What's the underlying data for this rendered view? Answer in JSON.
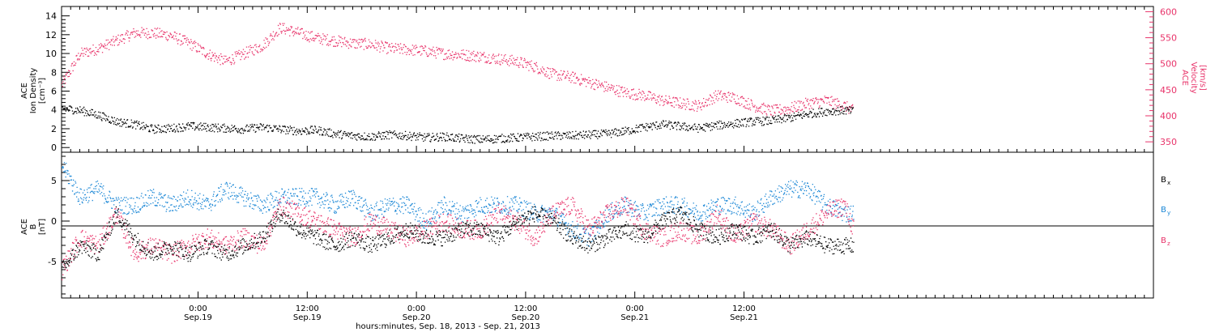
{
  "chart_data": [
    {
      "type": "scatter",
      "panel": "top",
      "ylabel_left": [
        "ACE",
        "Ion Density",
        "[cm⁻³]"
      ],
      "ylabel_right": [
        "ACE",
        "Velocity",
        "[km/s]"
      ],
      "y_left_ticks": [
        "0",
        "2",
        "4",
        "6",
        "8",
        "10",
        "12",
        "14"
      ],
      "y_left_lim": [
        -0.5,
        15
      ],
      "y_right_ticks": [
        "350",
        "400",
        "450",
        "500",
        "550",
        "600"
      ],
      "y_right_lim": [
        330,
        610
      ],
      "series": [
        {
          "axis": "left",
          "color": "#000000",
          "points": [
            [
              0,
              4.2
            ],
            [
              2,
              4.0
            ],
            [
              4,
              3.5
            ],
            [
              6,
              2.8
            ],
            [
              8,
              2.5
            ],
            [
              10,
              2.0
            ],
            [
              12,
              2.1
            ],
            [
              14,
              2.3
            ],
            [
              16,
              2.2
            ],
            [
              18,
              2.1
            ],
            [
              20,
              2.0
            ],
            [
              22,
              2.2
            ],
            [
              24,
              2.0
            ],
            [
              26,
              1.8
            ],
            [
              28,
              1.9
            ],
            [
              30,
              1.5
            ],
            [
              32,
              1.3
            ],
            [
              34,
              1.2
            ],
            [
              36,
              1.4
            ],
            [
              38,
              1.3
            ],
            [
              40,
              1.1
            ],
            [
              42,
              1.2
            ],
            [
              44,
              1.0
            ],
            [
              46,
              0.9
            ],
            [
              48,
              1.0
            ],
            [
              50,
              1.1
            ],
            [
              52,
              1.2
            ],
            [
              54,
              1.3
            ],
            [
              56,
              1.3
            ],
            [
              58,
              1.4
            ],
            [
              60,
              1.5
            ],
            [
              62,
              1.8
            ],
            [
              64,
              2.2
            ],
            [
              66,
              2.5
            ],
            [
              68,
              2.3
            ],
            [
              70,
              2.1
            ],
            [
              72,
              2.4
            ],
            [
              74,
              2.6
            ],
            [
              76,
              2.8
            ],
            [
              78,
              2.9
            ],
            [
              80,
              3.2
            ],
            [
              82,
              3.6
            ],
            [
              84,
              3.9
            ],
            [
              86,
              4.0
            ],
            [
              87,
              3.9
            ]
          ]
        },
        {
          "axis": "right",
          "color": "#e8336a",
          "points": [
            [
              0,
              460
            ],
            [
              2,
              520
            ],
            [
              4,
              530
            ],
            [
              6,
              545
            ],
            [
              8,
              560
            ],
            [
              10,
              560
            ],
            [
              12,
              555
            ],
            [
              14,
              540
            ],
            [
              16,
              520
            ],
            [
              18,
              505
            ],
            [
              20,
              520
            ],
            [
              22,
              535
            ],
            [
              24,
              570
            ],
            [
              26,
              560
            ],
            [
              28,
              550
            ],
            [
              30,
              545
            ],
            [
              32,
              540
            ],
            [
              34,
              538
            ],
            [
              36,
              530
            ],
            [
              38,
              528
            ],
            [
              40,
              525
            ],
            [
              42,
              520
            ],
            [
              44,
              518
            ],
            [
              46,
              515
            ],
            [
              48,
              510
            ],
            [
              50,
              505
            ],
            [
              52,
              495
            ],
            [
              54,
              480
            ],
            [
              56,
              475
            ],
            [
              58,
              465
            ],
            [
              60,
              455
            ],
            [
              62,
              445
            ],
            [
              64,
              440
            ],
            [
              66,
              430
            ],
            [
              68,
              425
            ],
            [
              70,
              420
            ],
            [
              72,
              440
            ],
            [
              74,
              435
            ],
            [
              76,
              420
            ],
            [
              78,
              410
            ],
            [
              80,
              415
            ],
            [
              82,
              425
            ],
            [
              84,
              430
            ],
            [
              86,
              420
            ],
            [
              87,
              410
            ]
          ]
        }
      ]
    },
    {
      "type": "scatter",
      "panel": "bottom",
      "ylabel_left": [
        "ACE",
        "B",
        "[nT]"
      ],
      "y_ticks": [
        "-5",
        "0",
        "5"
      ],
      "y_lim": [
        -9.5,
        8.5
      ],
      "series": [
        {
          "name": "Bx",
          "label_main": "B",
          "label_sub": "x",
          "color": "#000000",
          "points": [
            [
              0,
              -6
            ],
            [
              2,
              -3
            ],
            [
              4,
              -4
            ],
            [
              6,
              1
            ],
            [
              8,
              -2
            ],
            [
              10,
              -4
            ],
            [
              12,
              -3
            ],
            [
              14,
              -4
            ],
            [
              16,
              -3
            ],
            [
              18,
              -4
            ],
            [
              20,
              -3
            ],
            [
              22,
              -2
            ],
            [
              24,
              1
            ],
            [
              26,
              -1
            ],
            [
              28,
              -2
            ],
            [
              30,
              -3
            ],
            [
              32,
              -2
            ],
            [
              34,
              -3
            ],
            [
              36,
              -2
            ],
            [
              38,
              -1
            ],
            [
              40,
              -2
            ],
            [
              42,
              -2
            ],
            [
              44,
              -1
            ],
            [
              46,
              -1
            ],
            [
              48,
              -2
            ],
            [
              50,
              0
            ],
            [
              52,
              1
            ],
            [
              54,
              0
            ],
            [
              56,
              -2
            ],
            [
              58,
              -3
            ],
            [
              60,
              -2
            ],
            [
              62,
              -1
            ],
            [
              64,
              -2
            ],
            [
              66,
              0
            ],
            [
              68,
              1
            ],
            [
              70,
              -1
            ],
            [
              72,
              -2
            ],
            [
              74,
              -1
            ],
            [
              76,
              -2
            ],
            [
              78,
              -1
            ],
            [
              80,
              -3
            ],
            [
              82,
              -2
            ],
            [
              84,
              -3
            ],
            [
              86,
              -3
            ],
            [
              87,
              -3
            ]
          ]
        },
        {
          "name": "By",
          "label_main": "B",
          "label_sub": "y",
          "color": "#1b87d6",
          "points": [
            [
              0,
              7
            ],
            [
              2,
              3
            ],
            [
              4,
              4
            ],
            [
              6,
              2
            ],
            [
              8,
              2
            ],
            [
              10,
              3
            ],
            [
              12,
              2
            ],
            [
              14,
              3
            ],
            [
              16,
              2
            ],
            [
              18,
              4
            ],
            [
              20,
              3
            ],
            [
              22,
              2
            ],
            [
              24,
              3
            ],
            [
              26,
              3
            ],
            [
              28,
              3
            ],
            [
              30,
              2
            ],
            [
              32,
              3
            ],
            [
              34,
              1
            ],
            [
              36,
              2
            ],
            [
              38,
              2
            ],
            [
              40,
              0
            ],
            [
              42,
              2
            ],
            [
              44,
              1
            ],
            [
              46,
              2
            ],
            [
              48,
              2
            ],
            [
              50,
              2
            ],
            [
              52,
              1
            ],
            [
              54,
              1
            ],
            [
              56,
              -1
            ],
            [
              58,
              -2
            ],
            [
              60,
              1
            ],
            [
              62,
              2
            ],
            [
              64,
              1
            ],
            [
              66,
              2
            ],
            [
              68,
              2
            ],
            [
              70,
              1
            ],
            [
              72,
              2
            ],
            [
              74,
              2
            ],
            [
              76,
              1
            ],
            [
              78,
              3
            ],
            [
              80,
              4
            ],
            [
              82,
              4
            ],
            [
              84,
              2
            ],
            [
              86,
              1
            ],
            [
              87,
              1
            ]
          ]
        },
        {
          "name": "Bz",
          "label_main": "B",
          "label_sub": "z",
          "color": "#e8336a",
          "points": [
            [
              0,
              -6
            ],
            [
              2,
              -2
            ],
            [
              4,
              -3
            ],
            [
              6,
              1
            ],
            [
              8,
              -4
            ],
            [
              10,
              -3
            ],
            [
              12,
              -4
            ],
            [
              14,
              -3
            ],
            [
              16,
              -2
            ],
            [
              18,
              -3
            ],
            [
              20,
              -2
            ],
            [
              22,
              -3
            ],
            [
              24,
              2
            ],
            [
              26,
              1
            ],
            [
              28,
              0
            ],
            [
              30,
              -1
            ],
            [
              32,
              -2
            ],
            [
              34,
              0
            ],
            [
              36,
              -1
            ],
            [
              38,
              -2
            ],
            [
              40,
              -1
            ],
            [
              42,
              0
            ],
            [
              44,
              -1
            ],
            [
              46,
              -1
            ],
            [
              48,
              1
            ],
            [
              50,
              0
            ],
            [
              52,
              -2
            ],
            [
              54,
              1
            ],
            [
              56,
              2
            ],
            [
              58,
              -1
            ],
            [
              60,
              1
            ],
            [
              62,
              2
            ],
            [
              64,
              -1
            ],
            [
              66,
              -2
            ],
            [
              68,
              -1
            ],
            [
              70,
              -2
            ],
            [
              72,
              1
            ],
            [
              74,
              -2
            ],
            [
              76,
              0
            ],
            [
              78,
              -1
            ],
            [
              80,
              -3
            ],
            [
              82,
              -1
            ],
            [
              84,
              1
            ],
            [
              86,
              2
            ],
            [
              87,
              -1
            ]
          ]
        }
      ]
    }
  ],
  "x_axis": {
    "ticks": [
      {
        "hours": 15,
        "time": "0:00",
        "date": "Sep.19"
      },
      {
        "hours": 27,
        "time": "12:00",
        "date": "Sep.19"
      },
      {
        "hours": 39,
        "time": "0:00",
        "date": "Sep.20"
      },
      {
        "hours": 51,
        "time": "12:00",
        "date": "Sep.20"
      },
      {
        "hours": 63,
        "time": "0:00",
        "date": "Sep.21"
      },
      {
        "hours": 75,
        "time": "12:00",
        "date": "Sep.21"
      }
    ],
    "title": "hours:minutes, Sep. 18, 2013 - Sep. 21, 2013"
  }
}
